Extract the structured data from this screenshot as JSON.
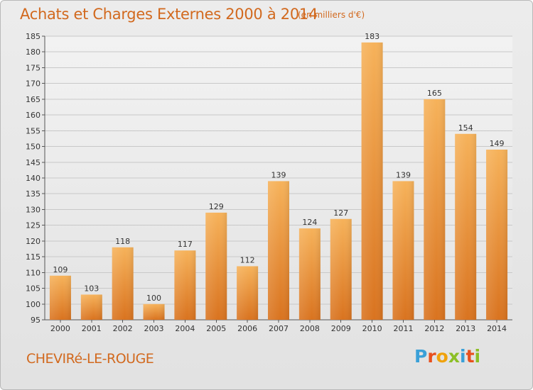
{
  "title": "Achats et Charges Externes 2000 à 2014",
  "unit": "(en milliers d'€)",
  "town": "CHEVIRé-LE-ROUGE",
  "logo": {
    "letters": [
      "P",
      "r",
      "o",
      "x",
      "i",
      "t",
      "i"
    ],
    "colors": [
      "#3aa0d8",
      "#e8501e",
      "#f0a20c",
      "#8cbf26",
      "#3aa0d8",
      "#e8501e",
      "#8cbf26"
    ]
  },
  "colors": {
    "bar_light": "#f6b25a",
    "bar_dark": "#d9731f",
    "accent": "#d2691e",
    "grid": "#c8c8c8"
  },
  "chart_data": {
    "type": "bar",
    "title": "Achats et Charges Externes 2000 à 2014",
    "categories": [
      "2000",
      "2001",
      "2002",
      "2003",
      "2004",
      "2005",
      "2006",
      "2007",
      "2008",
      "2009",
      "2010",
      "2011",
      "2012",
      "2013",
      "2014"
    ],
    "values": [
      109,
      103,
      118,
      100,
      117,
      129,
      112,
      139,
      124,
      127,
      183,
      139,
      165,
      154,
      149
    ],
    "ylim": [
      95,
      185
    ],
    "yticks": [
      95,
      100,
      105,
      110,
      115,
      120,
      125,
      130,
      135,
      140,
      145,
      150,
      155,
      160,
      165,
      170,
      175,
      180,
      185
    ],
    "grid": true
  }
}
